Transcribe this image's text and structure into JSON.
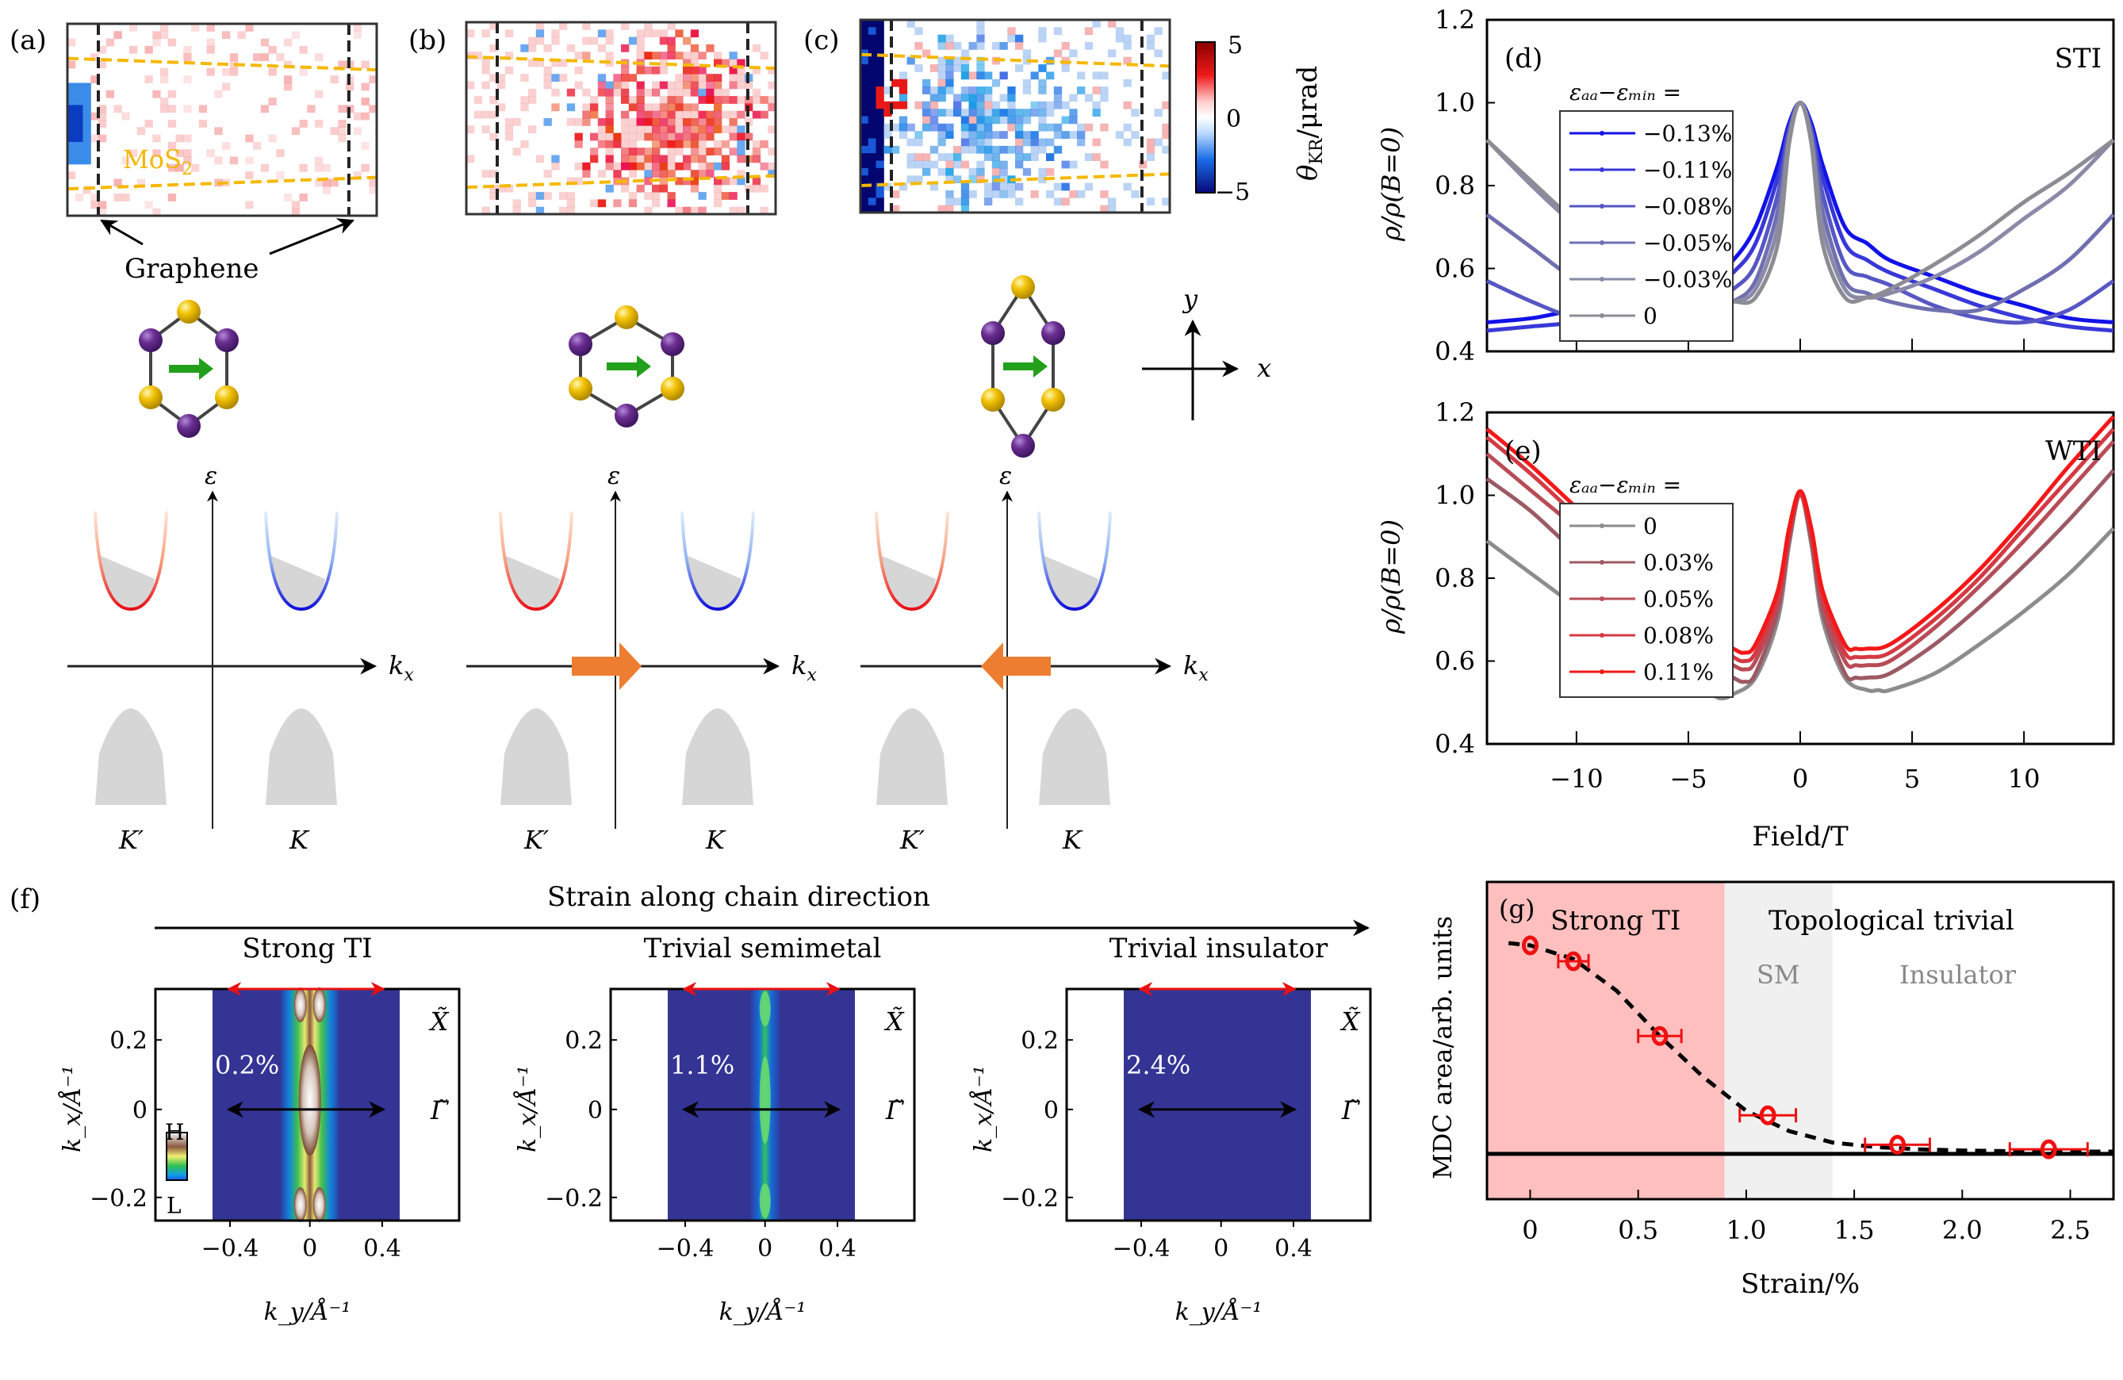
{
  "figure": {
    "panel_labels": {
      "a": "(a)",
      "b": "(b)",
      "c": "(c)",
      "d": "(d)",
      "e": "(e)",
      "f": "(f)",
      "g": "(g)"
    },
    "kerr_maps": {
      "mos2_label": "MoS",
      "mos2_sub": "2",
      "graphene_label": "Graphene",
      "colorbar": {
        "label": "θ",
        "label_sub": "KR",
        "label_unit": "/μrad",
        "ticks": [
          "5",
          "0",
          "−5"
        ],
        "range": [
          -5,
          5
        ],
        "colors": {
          "neg": "#08087a",
          "mid": "#ffffff",
          "pos": "#b00000"
        }
      },
      "maps": [
        {
          "id": "a",
          "dominant": "weak",
          "left_blue_patch": true
        },
        {
          "id": "b",
          "dominant": "positive",
          "left_blue_patch": false
        },
        {
          "id": "c",
          "dominant": "negative",
          "left_blue_patch": true
        }
      ]
    },
    "lattice": {
      "axis_x": "x",
      "axis_y": "y",
      "structures": [
        "unstrained",
        "compressed-y",
        "stretched-y"
      ],
      "colors": {
        "yellow": "#e6b800",
        "purple": "#6a2d91",
        "arrow": "#22a01c"
      }
    },
    "bands": {
      "energy_label": "ε",
      "k_label": "k",
      "k_sub": "x",
      "valley_labels": [
        "K′",
        "K"
      ],
      "shift_arrows": [
        "none",
        "right",
        "left"
      ],
      "colors": {
        "valley_kprime": "#e8201c",
        "valley_k": "#1a1adf",
        "arrow": "#ed7d31",
        "band": "#d6d6d6"
      }
    },
    "arpes": {
      "strain_header": "Strain along chain direction",
      "panels": [
        {
          "title": "Strong TI",
          "strain": "0.2%",
          "intensity": "high"
        },
        {
          "title": "Trivial semimetal",
          "strain": "1.1%",
          "intensity": "medium"
        },
        {
          "title": "Trivial insulator",
          "strain": "2.4%",
          "intensity": "none"
        }
      ],
      "point_top": "X̃",
      "point_center": "Γ̃",
      "ytick_labels": [
        "0.2",
        "0",
        "−0.2"
      ],
      "xtick_labels": [
        "−0.4",
        "0",
        "0.4"
      ],
      "ylabel": "k_x/Å⁻¹",
      "xlabel": "k_y/Å⁻¹",
      "colorbar_high": "H",
      "colorbar_low": "L"
    }
  },
  "chart_data": [
    {
      "id": "d",
      "type": "line",
      "title": "STI",
      "xlabel": "Field/T",
      "ylabel": "ρ/ρ(B=0)",
      "xlim": [
        -14,
        14
      ],
      "ylim": [
        0.4,
        1.2
      ],
      "yticks": [
        "0.4",
        "0.6",
        "0.8",
        "1.0",
        "1.2"
      ],
      "xticks": [
        -10,
        -5,
        0,
        5,
        10
      ],
      "legend_title": "ε_aa−ε_min =",
      "legend_position": "upper-left",
      "series": [
        {
          "name": "−0.13%",
          "color": "#1212e8",
          "x": [
            -14,
            -12,
            -10,
            -8,
            -6,
            -4,
            -3,
            -2,
            -1,
            -0.5,
            0,
            0.5,
            1,
            2,
            3,
            4,
            6,
            8,
            10,
            12,
            14
          ],
          "y": [
            0.47,
            0.48,
            0.5,
            0.51,
            0.53,
            0.58,
            0.62,
            0.7,
            0.85,
            0.95,
            1.0,
            0.95,
            0.85,
            0.7,
            0.66,
            0.62,
            0.58,
            0.54,
            0.51,
            0.48,
            0.47
          ]
        },
        {
          "name": "−0.11%",
          "color": "#3838d8",
          "x": [
            -14,
            -12,
            -10,
            -8,
            -6,
            -4,
            -3,
            -2,
            -1,
            -0.5,
            0,
            0.5,
            1,
            2,
            3,
            4,
            6,
            8,
            10,
            12,
            14
          ],
          "y": [
            0.45,
            0.46,
            0.47,
            0.49,
            0.51,
            0.55,
            0.59,
            0.66,
            0.82,
            0.94,
            1.0,
            0.94,
            0.82,
            0.66,
            0.62,
            0.59,
            0.55,
            0.51,
            0.48,
            0.46,
            0.45
          ]
        },
        {
          "name": "−0.08%",
          "color": "#5656c4",
          "x": [
            -14,
            -12,
            -10,
            -8,
            -6,
            -4,
            -3,
            -2,
            -1,
            -0.5,
            0,
            0.5,
            1,
            2,
            3,
            4,
            6,
            8,
            10,
            12,
            14
          ],
          "y": [
            0.57,
            0.52,
            0.48,
            0.47,
            0.48,
            0.52,
            0.55,
            0.61,
            0.78,
            0.93,
            1.0,
            0.93,
            0.78,
            0.61,
            0.58,
            0.56,
            0.51,
            0.48,
            0.47,
            0.5,
            0.57
          ]
        },
        {
          "name": "−0.05%",
          "color": "#6f6fb0",
          "x": [
            -14,
            -12,
            -10,
            -8,
            -6,
            -4,
            -3,
            -2,
            -1,
            -0.5,
            0,
            0.5,
            1,
            2,
            3,
            4,
            6,
            8,
            10,
            12,
            14
          ],
          "y": [
            0.73,
            0.65,
            0.57,
            0.51,
            0.49,
            0.5,
            0.52,
            0.57,
            0.74,
            0.92,
            1.0,
            0.92,
            0.74,
            0.57,
            0.54,
            0.52,
            0.5,
            0.5,
            0.55,
            0.62,
            0.73
          ]
        },
        {
          "name": "−0.03%",
          "color": "#8a8aa8",
          "x": [
            -14,
            -12,
            -10,
            -8,
            -6,
            -4,
            -3,
            -2,
            -1,
            -0.5,
            0,
            0.5,
            1,
            2,
            3,
            4,
            6,
            8,
            10,
            12,
            14
          ],
          "y": [
            0.91,
            0.8,
            0.7,
            0.61,
            0.55,
            0.52,
            0.52,
            0.55,
            0.7,
            0.91,
            1.0,
            0.91,
            0.7,
            0.55,
            0.53,
            0.54,
            0.58,
            0.64,
            0.72,
            0.8,
            0.91
          ]
        },
        {
          "name": "0",
          "color": "#8c8c94",
          "x": [
            -14,
            -12,
            -10,
            -8,
            -6,
            -4,
            -3,
            -2,
            -1,
            -0.5,
            0,
            0.5,
            1,
            2,
            3,
            4,
            6,
            8,
            10,
            12,
            14
          ],
          "y": [
            0.91,
            0.81,
            0.71,
            0.62,
            0.56,
            0.52,
            0.52,
            0.53,
            0.66,
            0.9,
            1.0,
            0.9,
            0.66,
            0.53,
            0.53,
            0.55,
            0.61,
            0.68,
            0.76,
            0.83,
            0.91
          ]
        }
      ]
    },
    {
      "id": "e",
      "type": "line",
      "title": "WTI",
      "xlabel": "Field/T",
      "ylabel": "ρ/ρ(B=0)",
      "xlim": [
        -14,
        14
      ],
      "ylim": [
        0.4,
        1.2
      ],
      "yticks": [
        "0.4",
        "0.6",
        "0.8",
        "1.0",
        "1.2"
      ],
      "xticks": [
        -10,
        -5,
        0,
        5,
        10
      ],
      "xtick_labels": [
        "−10",
        "−5",
        "0",
        "5",
        "10"
      ],
      "legend_title": "ε_aa−ε_min =",
      "legend_position": "upper-left",
      "series": [
        {
          "name": "0",
          "color": "#8c8c90",
          "x": [
            -14,
            -12,
            -10,
            -8,
            -6,
            -4,
            -3.5,
            -3,
            -2,
            -1,
            -0.5,
            0,
            0.5,
            1,
            2,
            3,
            3.5,
            4,
            6,
            8,
            10,
            12,
            14
          ],
          "y": [
            0.89,
            0.81,
            0.73,
            0.65,
            0.57,
            0.52,
            0.51,
            0.52,
            0.56,
            0.7,
            0.88,
            1.0,
            0.88,
            0.7,
            0.56,
            0.53,
            0.53,
            0.53,
            0.57,
            0.64,
            0.72,
            0.81,
            0.92
          ]
        },
        {
          "name": "0.03%",
          "color": "#9c5a64",
          "x": [
            -14,
            -12,
            -10,
            -8,
            -6,
            -4,
            -3,
            -2.5,
            -2,
            -1,
            -0.5,
            0,
            0.5,
            1,
            2,
            2.5,
            3,
            4,
            6,
            8,
            10,
            12,
            14
          ],
          "y": [
            1.04,
            0.96,
            0.86,
            0.77,
            0.68,
            0.59,
            0.56,
            0.55,
            0.57,
            0.72,
            0.89,
            1.0,
            0.89,
            0.72,
            0.57,
            0.56,
            0.56,
            0.57,
            0.64,
            0.73,
            0.83,
            0.94,
            1.06
          ]
        },
        {
          "name": "0.05%",
          "color": "#b84c56",
          "x": [
            -14,
            -12,
            -10,
            -8,
            -6,
            -4,
            -3,
            -2.5,
            -2,
            -1,
            -0.5,
            0,
            0.5,
            1,
            2,
            2.5,
            3,
            4,
            6,
            8,
            10,
            12,
            14
          ],
          "y": [
            1.1,
            1.01,
            0.92,
            0.82,
            0.72,
            0.62,
            0.59,
            0.58,
            0.6,
            0.74,
            0.9,
            1.0,
            0.9,
            0.74,
            0.6,
            0.59,
            0.59,
            0.6,
            0.68,
            0.78,
            0.89,
            1.01,
            1.13
          ]
        },
        {
          "name": "0.08%",
          "color": "#d43a44",
          "x": [
            -14,
            -12,
            -10,
            -8,
            -6,
            -4,
            -3,
            -2.5,
            -2,
            -1,
            -0.5,
            0,
            0.5,
            1,
            2,
            2.5,
            3,
            4,
            6,
            8,
            10,
            12,
            14
          ],
          "y": [
            1.14,
            1.05,
            0.95,
            0.85,
            0.75,
            0.65,
            0.61,
            0.6,
            0.62,
            0.75,
            0.91,
            1.0,
            0.91,
            0.75,
            0.62,
            0.61,
            0.61,
            0.62,
            0.7,
            0.8,
            0.92,
            1.04,
            1.16
          ]
        },
        {
          "name": "0.11%",
          "color": "#f41818",
          "x": [
            -14,
            -12,
            -10,
            -8,
            -6,
            -4,
            -3,
            -2.5,
            -2,
            -1,
            -0.5,
            0,
            0.5,
            1,
            2,
            2.5,
            3,
            4,
            6,
            8,
            10,
            12,
            14
          ],
          "y": [
            1.16,
            1.07,
            0.97,
            0.87,
            0.77,
            0.66,
            0.63,
            0.62,
            0.64,
            0.77,
            0.92,
            1.01,
            0.92,
            0.77,
            0.64,
            0.63,
            0.63,
            0.64,
            0.72,
            0.82,
            0.94,
            1.07,
            1.19
          ]
        }
      ]
    },
    {
      "id": "g",
      "type": "scatter",
      "title": "",
      "xlabel": "Strain/%",
      "ylabel": "MDC area/arb. units",
      "xlim": [
        -0.2,
        2.7
      ],
      "ylim": [
        -0.2,
        1.2
      ],
      "xticks": [
        "0",
        "0.5",
        "1.0",
        "1.5",
        "2.0",
        "2.5"
      ],
      "xtick_values": [
        0,
        0.5,
        1.0,
        1.5,
        2.0,
        2.5
      ],
      "regions": [
        {
          "label": "Strong TI",
          "from": -0.2,
          "to": 0.9,
          "color": "#ffbfbf"
        },
        {
          "label": "SM",
          "from": 0.9,
          "to": 1.4,
          "color": "#f0f0f0"
        },
        {
          "label": "Insulator",
          "from": 1.4,
          "to": 2.7,
          "color": "#ffffff"
        }
      ],
      "header_labels": {
        "left": "Strong TI",
        "right": "Topological trivial",
        "sm": "SM",
        "insulator": "Insulator"
      },
      "points": {
        "x": [
          0,
          0.2,
          0.6,
          1.1,
          1.7,
          2.4
        ],
        "y": [
          0.92,
          0.85,
          0.52,
          0.17,
          0.04,
          0.02
        ],
        "xerr": [
          0,
          0.07,
          0.1,
          0.13,
          0.15,
          0.18
        ],
        "color": "#ee1111"
      },
      "fit_curve": {
        "style": "dashed",
        "color": "#000000",
        "x": [
          -0.1,
          0,
          0.2,
          0.4,
          0.6,
          0.8,
          1.0,
          1.2,
          1.4,
          1.6,
          1.8,
          2.0,
          2.2,
          2.4,
          2.7
        ],
        "y": [
          0.93,
          0.92,
          0.86,
          0.72,
          0.52,
          0.34,
          0.19,
          0.1,
          0.05,
          0.03,
          0.02,
          0.015,
          0.012,
          0.01,
          0.01
        ]
      },
      "baseline": 0
    }
  ]
}
